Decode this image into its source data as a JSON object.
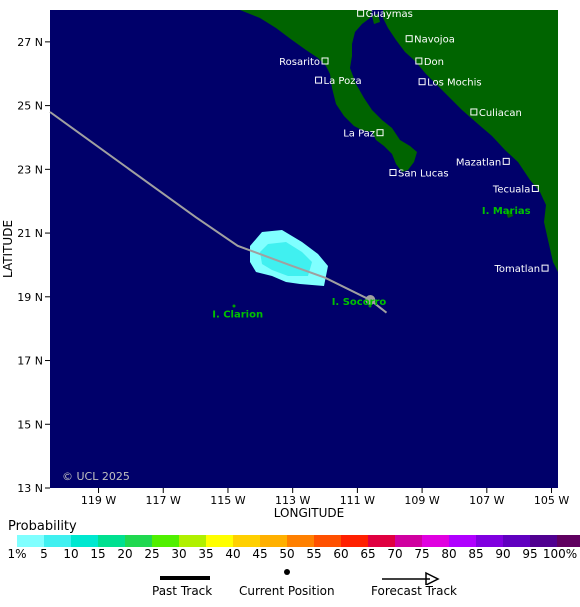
{
  "map": {
    "lat_ticks": [
      "27 N",
      "25 N",
      "23 N",
      "21 N",
      "19 N",
      "17 N",
      "15 N",
      "13 N"
    ],
    "lon_ticks": [
      "119 W",
      "117 W",
      "115 W",
      "113 W",
      "111 W",
      "109 W",
      "107 W",
      "105 W"
    ],
    "x_title": "LONGITUDE",
    "y_title": "LATITUDE",
    "copyright": "© UCL 2025",
    "ocean_color": "#00006a",
    "land_color": "#006400",
    "track_color": "#a0a0a0",
    "cities": [
      {
        "name": "Guaymas",
        "lon": -110.9,
        "lat": 27.9
      },
      {
        "name": "Navojoa",
        "lon": -109.4,
        "lat": 27.1
      },
      {
        "name": "Rosarito",
        "lon": -112.0,
        "lat": 26.4
      },
      {
        "name": "Don",
        "lon": -109.1,
        "lat": 26.4
      },
      {
        "name": "La Poza",
        "lon": -112.2,
        "lat": 25.8
      },
      {
        "name": "Los Mochis",
        "lon": -109.0,
        "lat": 25.75
      },
      {
        "name": "Culiacan",
        "lon": -107.4,
        "lat": 24.8
      },
      {
        "name": "La Paz",
        "lon": -110.3,
        "lat": 24.15
      },
      {
        "name": "Mazatlan",
        "lon": -106.4,
        "lat": 23.25
      },
      {
        "name": "San Lucas",
        "lon": -109.9,
        "lat": 22.9
      },
      {
        "name": "Tecuala",
        "lon": -105.5,
        "lat": 22.4
      },
      {
        "name": "Tomatlan",
        "lon": -105.2,
        "lat": 19.9
      }
    ],
    "islands": [
      {
        "name": "I. Marias",
        "lon": -106.4,
        "lat": 21.6
      },
      {
        "name": "I. Clarion",
        "lon": -114.7,
        "lat": 18.35
      },
      {
        "name": "I. Socorro",
        "lon": -110.95,
        "lat": 18.75
      }
    ],
    "track": [
      [
        -120.5,
        24.8
      ],
      [
        -116.0,
        21.5
      ],
      [
        -114.7,
        20.6
      ],
      [
        -113.1,
        20.0
      ],
      [
        -112.0,
        19.6
      ],
      [
        -110.6,
        18.9
      ],
      [
        -110.1,
        18.5
      ]
    ],
    "current_position": {
      "lon": -110.6,
      "lat": 18.9
    }
  },
  "legend": {
    "title": "Probability",
    "labels": [
      "1%",
      "5",
      "10",
      "15",
      "20",
      "25",
      "30",
      "35",
      "40",
      "45",
      "50",
      "55",
      "60",
      "65",
      "70",
      "75",
      "80",
      "85",
      "90",
      "95",
      "100%"
    ],
    "colors": [
      "#80ffff",
      "#40f0f0",
      "#00e8d0",
      "#00e090",
      "#20d850",
      "#50f000",
      "#b0f000",
      "#ffff00",
      "#ffd000",
      "#ffb000",
      "#ff8000",
      "#ff5000",
      "#ff2000",
      "#e00040",
      "#d000a0",
      "#e000e0",
      "#b000ff",
      "#8000e0",
      "#6000c0",
      "#500090",
      "#600060"
    ],
    "past_track": "Past Track",
    "current_position": "Current Position",
    "forecast_track": "Forecast Track"
  }
}
